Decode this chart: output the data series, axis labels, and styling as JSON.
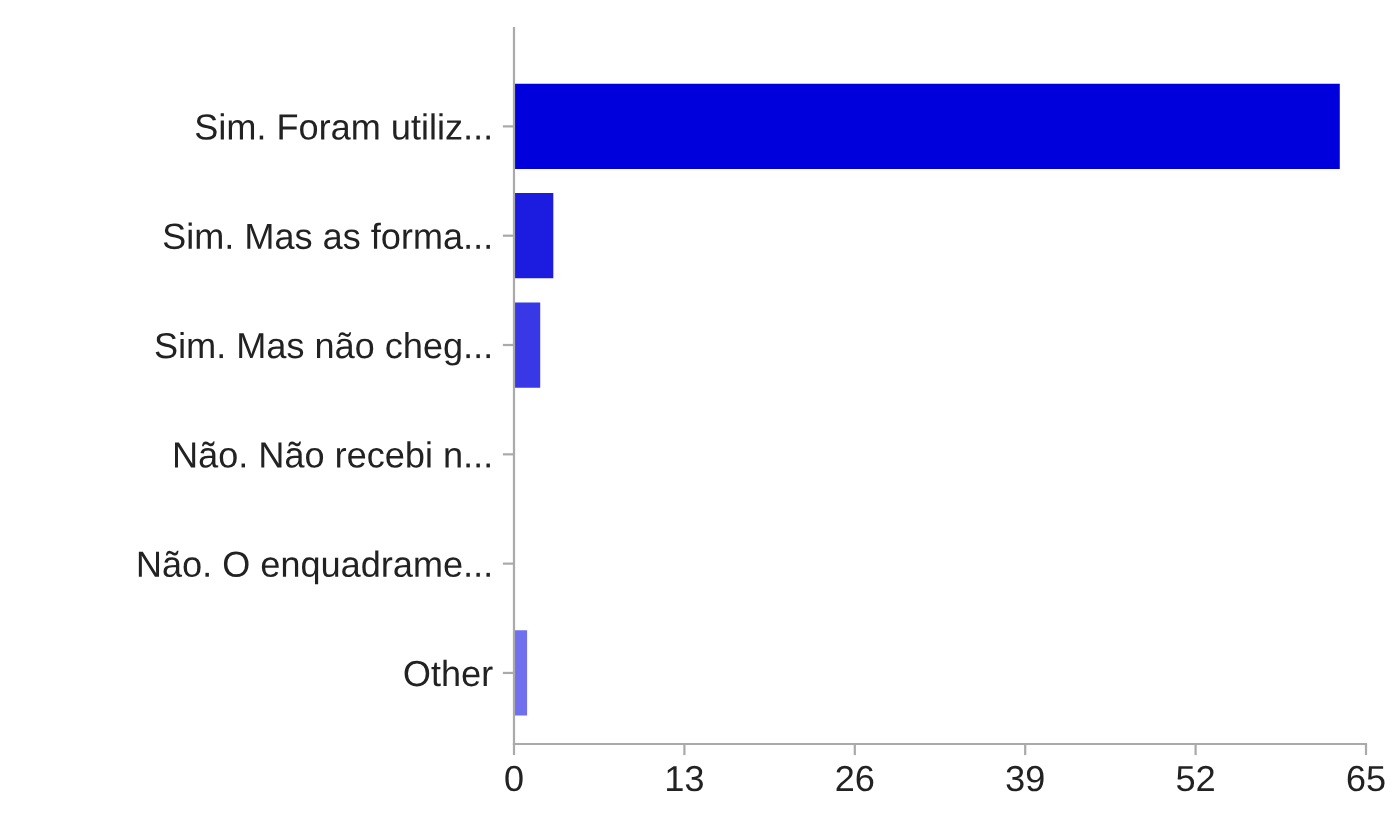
{
  "chart_data": {
    "type": "bar",
    "orientation": "horizontal",
    "categories": [
      "Sim. Foram utiliz...",
      "Sim. Mas as forma...",
      "Sim. Mas não cheg...",
      "Não. Não recebi n...",
      "Não. O enquadrame...",
      "Other"
    ],
    "values": [
      63,
      3,
      2,
      0,
      0,
      1
    ],
    "colors": [
      "#0000dd",
      "#1c1ce0",
      "#3838e6",
      "#5050ea",
      "#6060ec",
      "#7070ee"
    ],
    "xlim": [
      0,
      65
    ],
    "xticks": [
      0,
      13,
      26,
      39,
      52,
      65
    ],
    "grid": false
  }
}
